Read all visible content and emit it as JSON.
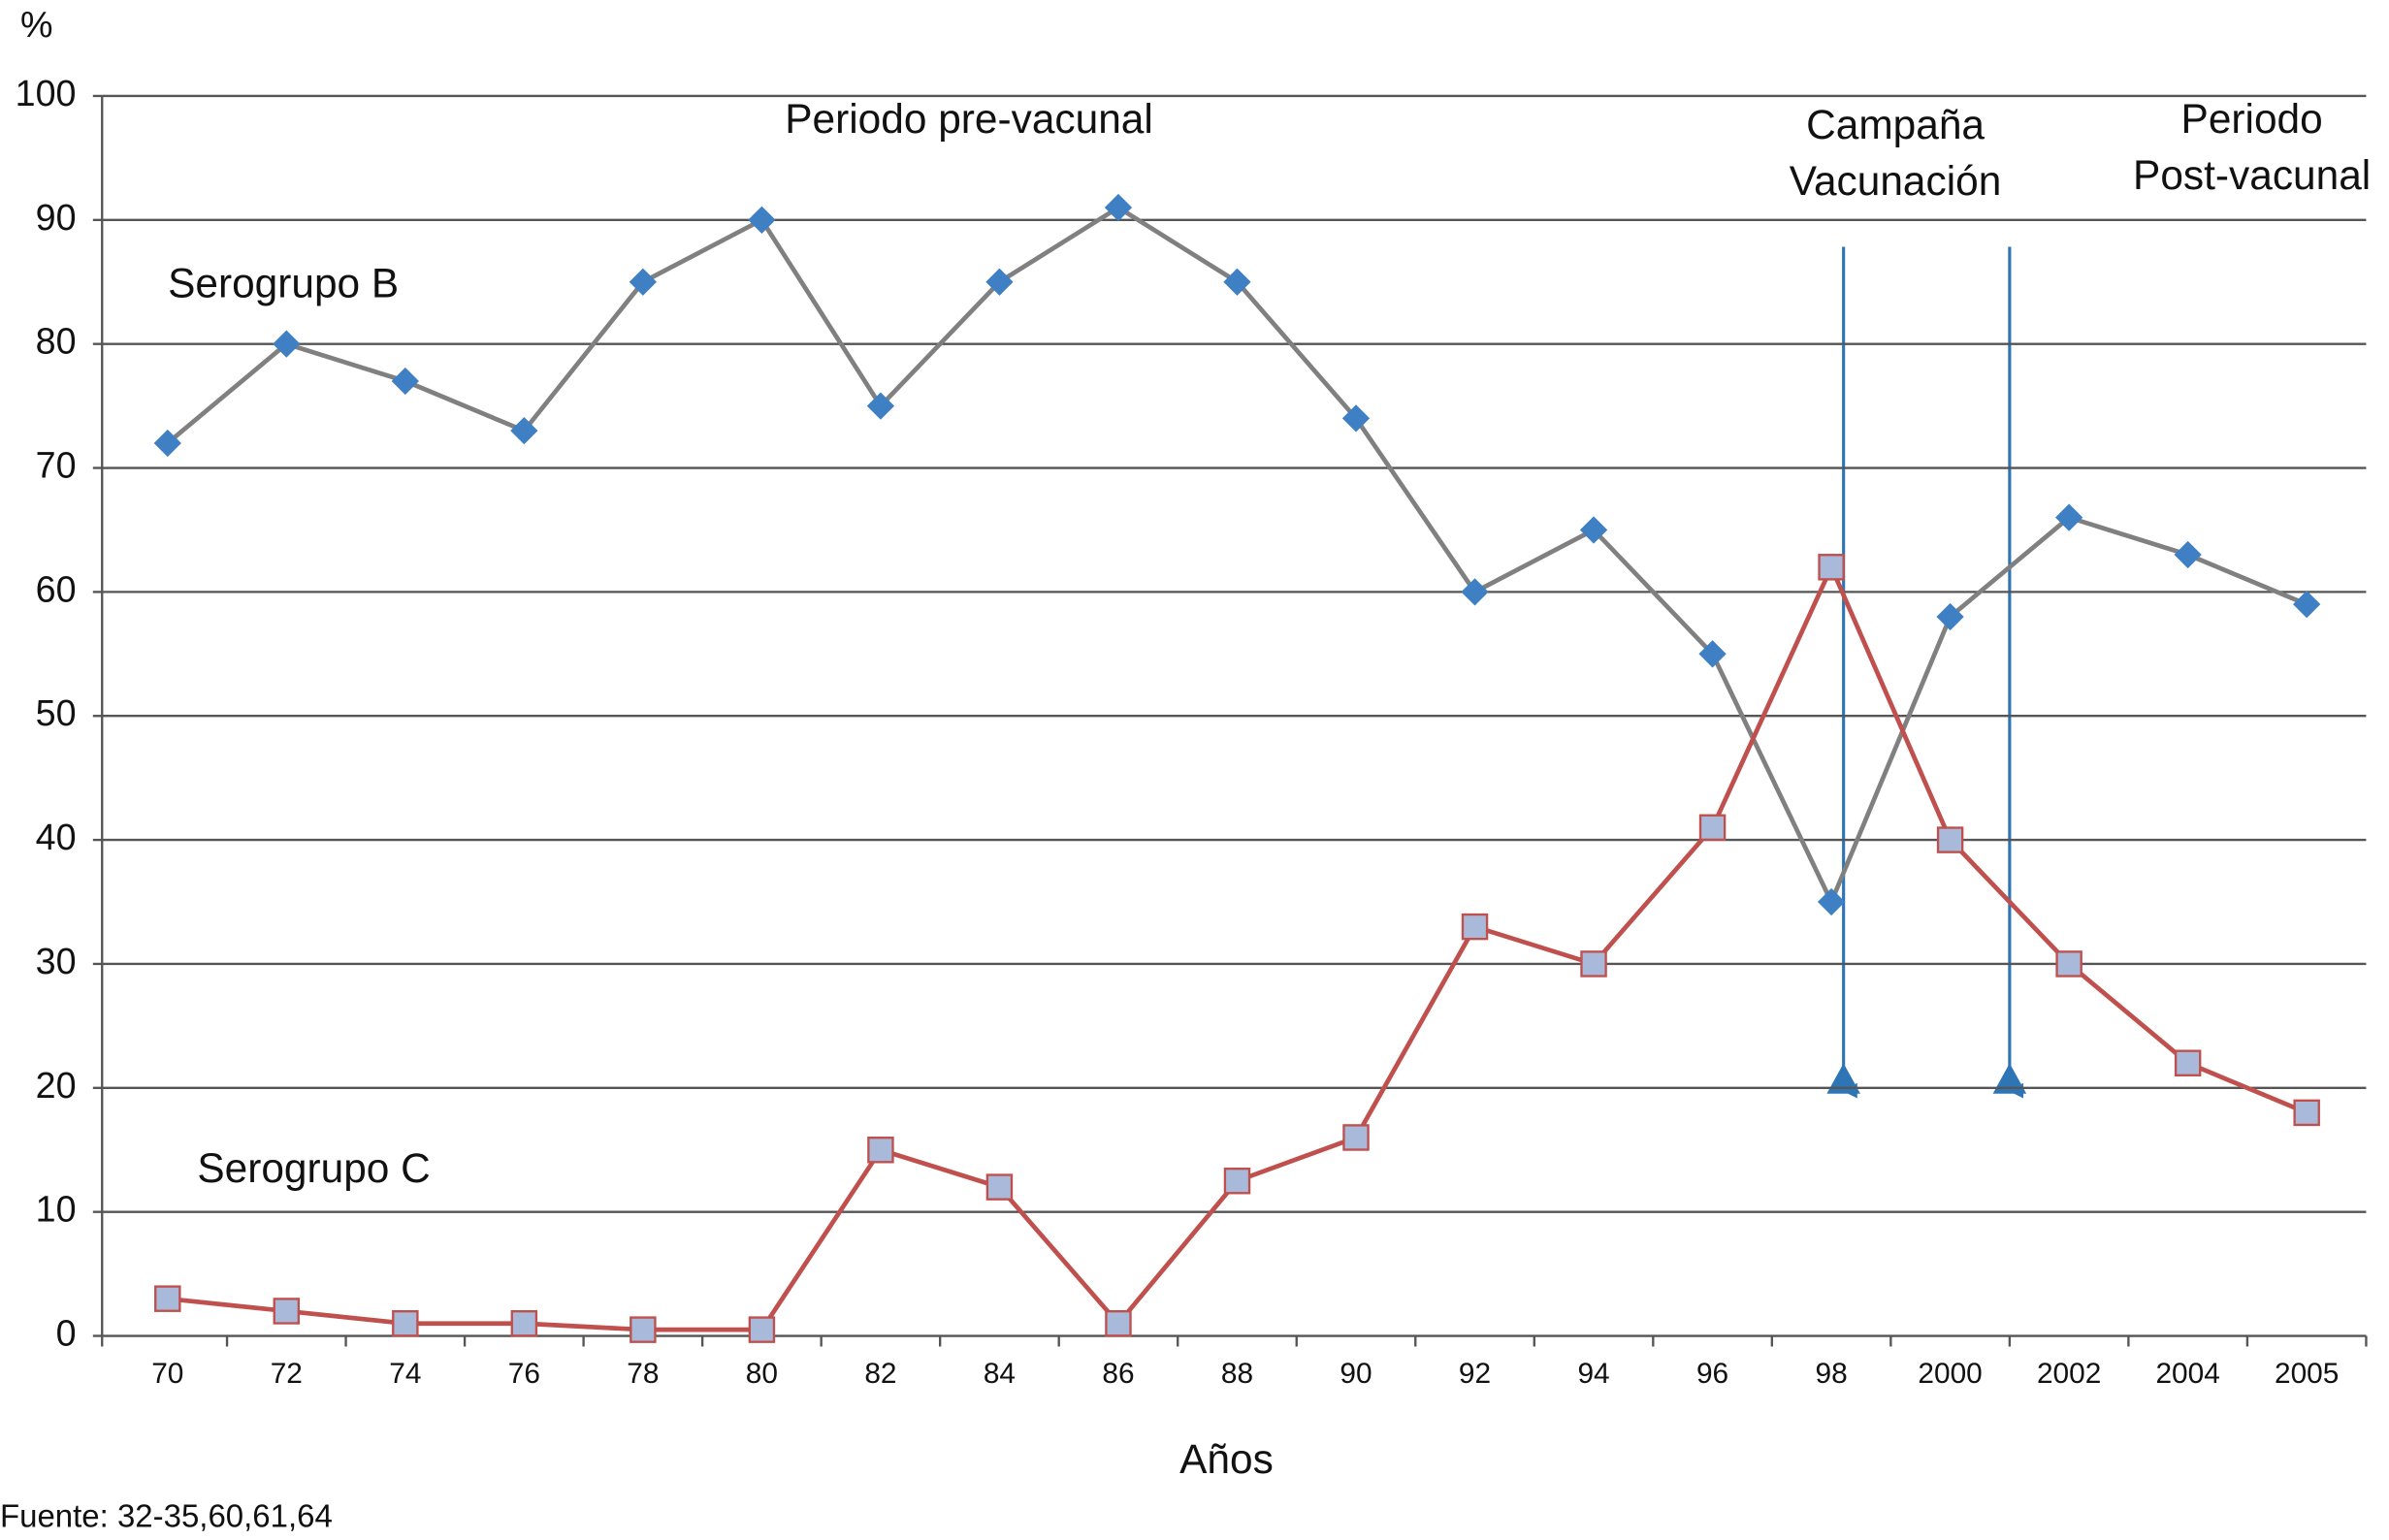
{
  "chart_data": {
    "type": "line",
    "y_label": "%",
    "x_label": "Años",
    "source": "Fuente: 32-35,60,61,64",
    "annotations": [
      {
        "lines": [
          "Periodo pre-vacunal"
        ]
      },
      {
        "lines": [
          "Campaña",
          "Vacunación"
        ]
      },
      {
        "lines": [
          "Periodo",
          "Post-vacunal"
        ]
      }
    ],
    "categories": [
      "70",
      "72",
      "74",
      "76",
      "78",
      "80",
      "82",
      "84",
      "86",
      "88",
      "90",
      "92",
      "94",
      "96",
      "98",
      "2000",
      "2002",
      "2004",
      "2005"
    ],
    "series": [
      {
        "name": "Serogrupo B",
        "color": "#808080",
        "marker": "diamond",
        "marker_color": "#3f7fc4",
        "values": [
          72,
          80,
          77,
          73,
          85,
          90,
          75,
          85,
          91,
          85,
          74,
          60,
          65,
          55,
          35,
          58,
          66,
          63,
          59
        ]
      },
      {
        "name": "Serogrupo C",
        "color": "#c0504d",
        "marker": "square",
        "marker_color": "#a9b9d9",
        "values": [
          3,
          2,
          1,
          1,
          0.5,
          0.5,
          15,
          12,
          1,
          12.5,
          16,
          33,
          30,
          41,
          62,
          40,
          30,
          22,
          18
        ]
      }
    ],
    "ylim": [
      0,
      100
    ],
    "yticks": [
      0,
      10,
      20,
      30,
      40,
      50,
      60,
      70,
      80,
      90,
      100
    ],
    "grid": true
  }
}
